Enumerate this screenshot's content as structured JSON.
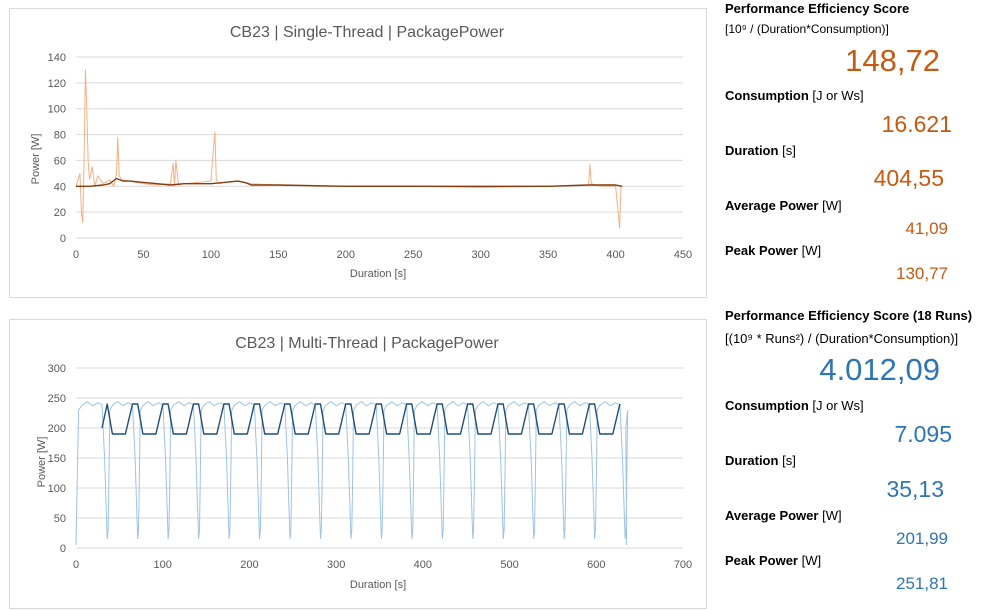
{
  "chart_data": [
    {
      "type": "line",
      "title": "CB23 | Single-Thread | PackagePower",
      "xlabel": "Duration [s]",
      "ylabel": "Power [W]",
      "xlim": [
        0,
        450
      ],
      "ylim": [
        0,
        140
      ],
      "x_ticks": [
        0,
        50,
        100,
        150,
        200,
        250,
        300,
        350,
        400,
        450
      ],
      "y_ticks": [
        0,
        20,
        40,
        60,
        80,
        100,
        120,
        140
      ],
      "grid": true,
      "series": [
        {
          "color": "#f4b183",
          "x": [
            0,
            3,
            4,
            5,
            6,
            7,
            8,
            9,
            10,
            12,
            14,
            16,
            20,
            25,
            28,
            30,
            31,
            32,
            34,
            40,
            50,
            60,
            70,
            72,
            73,
            74,
            76,
            80,
            90,
            100,
            102,
            103,
            104,
            106,
            110,
            120,
            130,
            150,
            180,
            200,
            250,
            300,
            350,
            380,
            381,
            382,
            390,
            400,
            403,
            404,
            405
          ],
          "y": [
            40,
            50,
            20,
            12,
            60,
            130,
            100,
            60,
            45,
            55,
            40,
            48,
            42,
            45,
            40,
            50,
            78,
            48,
            45,
            44,
            42,
            41,
            42,
            58,
            40,
            60,
            41,
            42,
            43,
            44,
            70,
            82,
            45,
            42,
            43,
            44,
            42,
            41,
            40,
            40,
            40,
            39,
            40,
            41,
            57,
            42,
            40,
            40,
            8,
            40,
            40
          ]
        },
        {
          "color": "#843c0c",
          "x": [
            0,
            10,
            20,
            25,
            30,
            35,
            40,
            50,
            60,
            70,
            80,
            100,
            110,
            120,
            125,
            130,
            150,
            200,
            250,
            300,
            350,
            380,
            400,
            405
          ],
          "y": [
            40,
            40,
            41,
            42,
            46,
            44,
            44,
            43,
            42,
            41,
            42,
            42,
            43,
            44,
            43,
            41,
            41,
            40,
            40,
            40,
            40,
            41,
            41,
            40
          ]
        }
      ]
    },
    {
      "type": "line",
      "title": "CB23 | Multi-Thread | PackagePower",
      "xlabel": "Duration [s]",
      "ylabel": "Power [W]",
      "xlim": [
        0,
        700
      ],
      "ylim": [
        0,
        300
      ],
      "x_ticks": [
        0,
        100,
        200,
        300,
        400,
        500,
        600,
        700
      ],
      "y_ticks": [
        0,
        50,
        100,
        150,
        200,
        250,
        300
      ],
      "grid": true,
      "series": [
        {
          "color": "#9dc3e6",
          "cycle_period_s": 35.13,
          "cycles": 18,
          "peak_power": 251.81,
          "baseline": 240,
          "dip_min": 5
        },
        {
          "color": "#1f4e79",
          "cycle_period_s": 35.13,
          "start_s": 30,
          "end_s": 632,
          "high": 240,
          "low": 190
        }
      ]
    }
  ],
  "single": {
    "score_label": "Performance Efficiency Score",
    "score_formula": "[10⁹ / (Duration*Consumption)]",
    "score_value": "148,72",
    "consumption_label": "Consumption",
    "consumption_unit": "[J or Ws]",
    "consumption_value": "16.621",
    "duration_label": "Duration",
    "duration_unit": "[s]",
    "duration_value": "404,55",
    "avg_label": "Average Power",
    "avg_unit": "[W]",
    "avg_value": "41,09",
    "peak_label": "Peak Power",
    "peak_unit": "[W]",
    "peak_value": "130,77"
  },
  "multi": {
    "score_label": "Performance Efficiency Score (18 Runs)",
    "score_formula": "[(10⁹ * Runs²) / (Duration*Consumption)]",
    "score_value": "4.012,09",
    "consumption_label": "Consumption",
    "consumption_unit": "[J or Ws]",
    "consumption_value": "7.095",
    "duration_label": "Duration",
    "duration_unit": "[s]",
    "duration_value": "35,13",
    "avg_label": "Average Power",
    "avg_unit": "[W]",
    "avg_value": "201,99",
    "peak_label": "Peak Power",
    "peak_unit": "[W]",
    "peak_value": "251,81"
  },
  "colors": {
    "single_accent": "#c55a11",
    "multi_accent": "#2e75b6",
    "grid": "#d9d9d9"
  }
}
